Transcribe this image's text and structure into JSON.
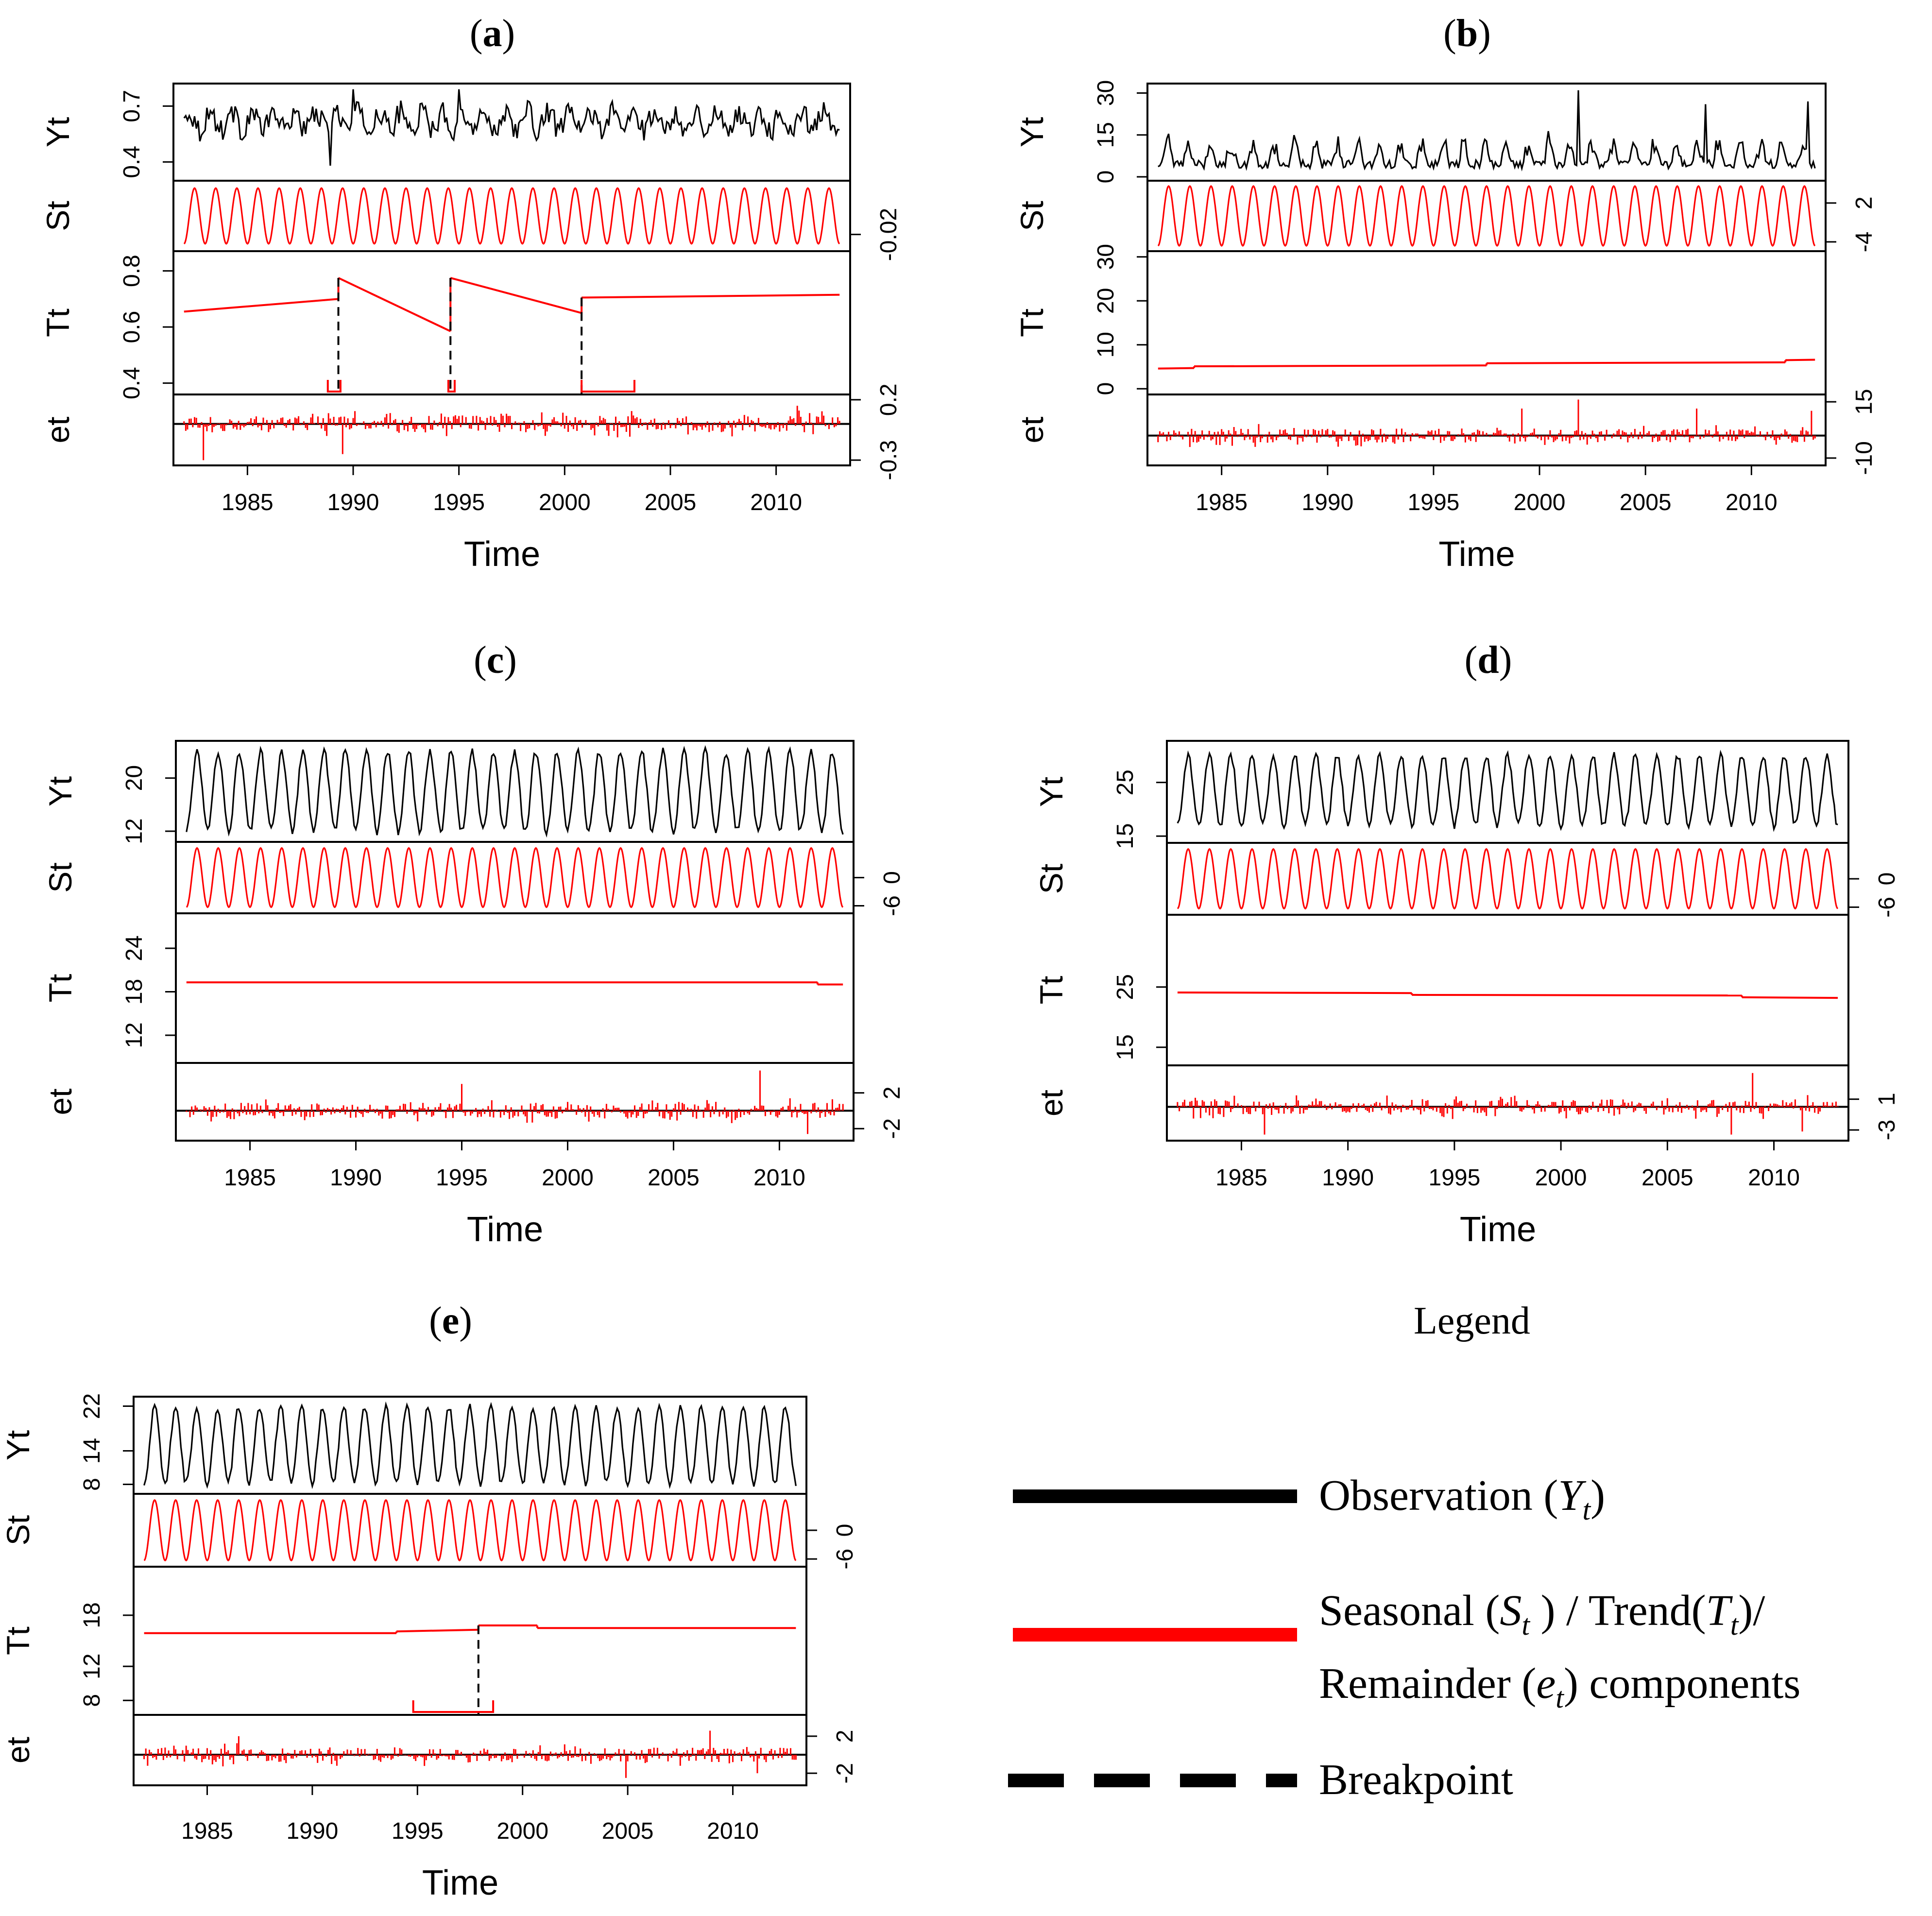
{
  "figure": {
    "legend_title": "Legend",
    "legend": [
      {
        "kind": "solid-black",
        "text": "Observation (Yₜ)",
        "line1": "Observation (",
        "sym": "Y",
        "sub": "t",
        "tail": ")"
      },
      {
        "kind": "solid-red",
        "line1": "Seasonal ( Sₜ ) / Trend(Tₜ)/",
        "line2": "Remainder (eₜ) components"
      },
      {
        "kind": "dashed-black",
        "text": "Breakpoint"
      }
    ],
    "colors": {
      "observation": "#000000",
      "component": "#ff0000",
      "breakpoint": "#000000",
      "frame": "#000000"
    }
  },
  "chart_data": [
    {
      "type": "line",
      "id": "a",
      "title": "(a)",
      "title_bold": "a",
      "xlabel": "Time",
      "xlim": [
        1981.5,
        2013.5
      ],
      "xticks": [
        1985,
        1990,
        1995,
        2000,
        2005,
        2010
      ],
      "xtick_labels": [
        "1985",
        "1990",
        "1995",
        "2000",
        "2005",
        "2010"
      ],
      "panels": [
        {
          "name": "Yt",
          "label": "Yt",
          "ylim": [
            0.32,
            0.8
          ],
          "ticks": [
            0.4,
            0.7
          ],
          "tick_labels": [
            "0.4",
            "0.7"
          ],
          "tick_side": "left",
          "series": {
            "kind": "noisy",
            "mean": 0.62,
            "amp": 0.05,
            "noise": 0.06,
            "spikes": [
              [
                1988.9,
                0.38
              ],
              [
                1990.0,
                0.79
              ],
              [
                1995.0,
                0.79
              ]
            ]
          }
        },
        {
          "name": "St",
          "label": "St",
          "ylim": [
            -0.035,
            0.035
          ],
          "ticks": [
            -0.02
          ],
          "tick_labels": [
            "-0.02"
          ],
          "tick_side": "right",
          "series": {
            "kind": "seasonal",
            "amp": 0.03
          }
        },
        {
          "name": "Tt",
          "label": "Tt",
          "ylim": [
            0.38,
            0.85
          ],
          "ticks": [
            0.4,
            0.6,
            0.8
          ],
          "tick_labels": [
            "0.4",
            "0.6",
            "0.8"
          ],
          "tick_side": "left",
          "series": {
            "kind": "segments",
            "segments": [
              [
                1982.0,
                0.655,
                1989.3,
                0.7
              ],
              [
                1989.3,
                0.775,
                1994.6,
                0.585
              ],
              [
                1994.6,
                0.775,
                2000.8,
                0.65
              ],
              [
                2000.8,
                0.705,
                2013.0,
                0.715
              ]
            ]
          },
          "breakpoints": [
            1989.3,
            1994.6,
            2000.8
          ],
          "ci": [
            [
              1988.8,
              1989.4
            ],
            [
              1994.5,
              1994.8
            ],
            [
              2000.8,
              2003.3
            ]
          ]
        },
        {
          "name": "et",
          "label": "et",
          "ylim": [
            -0.32,
            0.22
          ],
          "ticks": [
            0.2,
            -0.3
          ],
          "tick_labels": [
            "0.2",
            "-0.3"
          ],
          "tick_side": "right",
          "series": {
            "kind": "remainder",
            "noise": 0.07,
            "spikes": [
              [
                1982.9,
                -0.3
              ],
              [
                1989.5,
                -0.25
              ],
              [
                2011.0,
                0.15
              ]
            ]
          }
        }
      ]
    },
    {
      "type": "line",
      "id": "b",
      "title": "(b)",
      "title_bold": "b",
      "xlabel": "Time",
      "xlim": [
        1981.5,
        2013.5
      ],
      "xticks": [
        1985,
        1990,
        1995,
        2000,
        2005,
        2010
      ],
      "xtick_labels": [
        "1985",
        "1990",
        "1995",
        "2000",
        "2005",
        "2010"
      ],
      "panels": [
        {
          "name": "Yt",
          "label": "Yt",
          "ylim": [
            0,
            32
          ],
          "ticks": [
            0,
            15,
            30
          ],
          "tick_labels": [
            "0",
            "15",
            "30"
          ],
          "tick_side": "left",
          "series": {
            "kind": "seasonal-spiky",
            "base": 3,
            "amp": 7,
            "noise": 3,
            "spikes": [
              [
                2001.8,
                31
              ],
              [
                2007.8,
                26
              ],
              [
                2012.7,
                27
              ]
            ]
          }
        },
        {
          "name": "St",
          "label": "St",
          "ylim": [
            -5,
            5
          ],
          "ticks": [
            -4,
            2
          ],
          "tick_labels": [
            "-4",
            "2"
          ],
          "tick_side": "right",
          "series": {
            "kind": "seasonal",
            "amp": 4.6
          }
        },
        {
          "name": "Tt",
          "label": "Tt",
          "ylim": [
            0,
            30
          ],
          "ticks": [
            0,
            10,
            20,
            30
          ],
          "tick_labels": [
            "0",
            "10",
            "20",
            "30"
          ],
          "tick_side": "left",
          "series": {
            "kind": "segments",
            "segments": [
              [
                1982.0,
                4.6,
                1983.7,
                4.7
              ],
              [
                1983.7,
                5.1,
                1997.5,
                5.3
              ],
              [
                1997.5,
                5.8,
                2011.6,
                6.0
              ],
              [
                2011.6,
                6.5,
                2013.0,
                6.6
              ]
            ]
          },
          "breakpoints": [],
          "ci": []
        },
        {
          "name": "et",
          "label": "et",
          "ylim": [
            -12,
            17
          ],
          "ticks": [
            15,
            -10
          ],
          "tick_labels": [
            "15",
            "-10"
          ],
          "tick_side": "right",
          "series": {
            "kind": "remainder",
            "noise": 3.2,
            "spikes": [
              [
                2001.8,
                16
              ],
              [
                1999.2,
                12
              ],
              [
                2007.4,
                12
              ],
              [
                2012.8,
                11
              ]
            ]
          }
        }
      ]
    },
    {
      "type": "line",
      "id": "c",
      "title": "(c)",
      "title_bold": "c",
      "xlabel": "Time",
      "xlim": [
        1981.5,
        2013.5
      ],
      "xticks": [
        1985,
        1990,
        1995,
        2000,
        2005,
        2010
      ],
      "xtick_labels": [
        "1985",
        "1990",
        "1995",
        "2000",
        "2005",
        "2010"
      ],
      "panels": [
        {
          "name": "Yt",
          "label": "Yt",
          "ylim": [
            11,
            25
          ],
          "ticks": [
            12,
            20
          ],
          "tick_labels": [
            "12",
            "20"
          ],
          "tick_side": "left",
          "series": {
            "kind": "seasonal-clean",
            "mean": 18,
            "amp": 6,
            "noise": 0.6
          }
        },
        {
          "name": "St",
          "label": "St",
          "ylim": [
            -7,
            7
          ],
          "ticks": [
            -6,
            0
          ],
          "tick_labels": [
            "-6",
            "0"
          ],
          "tick_side": "right",
          "series": {
            "kind": "seasonal",
            "amp": 6.3
          }
        },
        {
          "name": "Tt",
          "label": "Tt",
          "ylim": [
            9,
            28
          ],
          "ticks": [
            12,
            18,
            24
          ],
          "tick_labels": [
            "12",
            "18",
            "24"
          ],
          "tick_side": "left",
          "series": {
            "kind": "segments",
            "segments": [
              [
                1982.0,
                19.3,
                2011.8,
                19.3
              ],
              [
                2011.8,
                19.0,
                2013.0,
                19.0
              ]
            ]
          },
          "breakpoints": [],
          "ci": []
        },
        {
          "name": "et",
          "label": "et",
          "ylim": [
            -3,
            5
          ],
          "ticks": [
            2,
            -2
          ],
          "tick_labels": [
            "2",
            "-2"
          ],
          "tick_side": "right",
          "series": {
            "kind": "remainder",
            "noise": 0.9,
            "spikes": [
              [
                2009.1,
                4.5
              ],
              [
                1995.0,
                3.0
              ],
              [
                2011.3,
                -2.6
              ]
            ]
          }
        }
      ]
    },
    {
      "type": "line",
      "id": "d",
      "title": "(d)",
      "title_bold": "d",
      "xlabel": "Time",
      "xlim": [
        1981.5,
        2013.5
      ],
      "xticks": [
        1985,
        1990,
        1995,
        2000,
        2005,
        2010
      ],
      "xtick_labels": [
        "1985",
        "1990",
        "1995",
        "2000",
        "2005",
        "2010"
      ],
      "panels": [
        {
          "name": "Yt",
          "label": "Yt",
          "ylim": [
            14.5,
            32
          ],
          "ticks": [
            15,
            25
          ],
          "tick_labels": [
            "15",
            "25"
          ],
          "tick_side": "left",
          "series": {
            "kind": "seasonal-clean",
            "mean": 23.5,
            "amp": 6.5,
            "noise": 0.7
          }
        },
        {
          "name": "St",
          "label": "St",
          "ylim": [
            -7,
            7
          ],
          "ticks": [
            -6,
            0
          ],
          "tick_labels": [
            "-6",
            "0"
          ],
          "tick_side": "right",
          "series": {
            "kind": "seasonal",
            "amp": 6.3
          }
        },
        {
          "name": "Tt",
          "label": "Tt",
          "ylim": [
            13,
            36
          ],
          "ticks": [
            15,
            25
          ],
          "tick_labels": [
            "15",
            "25"
          ],
          "tick_side": "left",
          "series": {
            "kind": "segments",
            "segments": [
              [
                1982.0,
                24.1,
                1993.0,
                24.0
              ],
              [
                1993.0,
                23.7,
                2008.5,
                23.6
              ],
              [
                2008.5,
                23.3,
                2013.0,
                23.2
              ]
            ]
          },
          "breakpoints": [],
          "ci": []
        },
        {
          "name": "et",
          "label": "et",
          "ylim": [
            -4,
            5
          ],
          "ticks": [
            1,
            -3
          ],
          "tick_labels": [
            "1",
            "-3"
          ],
          "tick_side": "right",
          "series": {
            "kind": "remainder",
            "noise": 1.0,
            "spikes": [
              [
                2009.0,
                4.4
              ],
              [
                1986.1,
                -3.6
              ],
              [
                2008.0,
                -3.6
              ],
              [
                2011.3,
                -3.2
              ]
            ]
          }
        }
      ]
    },
    {
      "type": "line",
      "id": "e",
      "title": "(e)",
      "title_bold": "e",
      "xlabel": "Time",
      "xlim": [
        1981.5,
        2013.5
      ],
      "xticks": [
        1985,
        1990,
        1995,
        2000,
        2005,
        2010
      ],
      "xtick_labels": [
        "1985",
        "1990",
        "1995",
        "2000",
        "2005",
        "2010"
      ],
      "panels": [
        {
          "name": "Yt",
          "label": "Yt",
          "ylim": [
            7,
            23
          ],
          "ticks": [
            8,
            14,
            22
          ],
          "tick_labels": [
            "8",
            "14",
            "22"
          ],
          "tick_side": "left",
          "series": {
            "kind": "seasonal-clean",
            "mean": 15,
            "amp": 6.8,
            "noise": 0.6
          }
        },
        {
          "name": "St",
          "label": "St",
          "ylim": [
            -7,
            7
          ],
          "ticks": [
            -6,
            0
          ],
          "tick_labels": [
            "-6",
            "0"
          ],
          "tick_side": "right",
          "series": {
            "kind": "seasonal",
            "amp": 6.3
          }
        },
        {
          "name": "Tt",
          "label": "Tt",
          "ylim": [
            7,
            23
          ],
          "ticks": [
            8,
            12,
            18
          ],
          "tick_labels": [
            "8",
            "12",
            "18"
          ],
          "tick_side": "left",
          "series": {
            "kind": "segments",
            "segments": [
              [
                1982.0,
                15.9,
                1994.0,
                15.9
              ],
              [
                1994.0,
                16.1,
                1997.9,
                16.3
              ],
              [
                1997.9,
                16.8,
                2000.7,
                16.8
              ],
              [
                2000.7,
                16.5,
                2013.0,
                16.5
              ]
            ]
          },
          "breakpoints": [
            1997.9
          ],
          "ci": [
            [
              1994.8,
              1998.6
            ]
          ]
        },
        {
          "name": "et",
          "label": "et",
          "ylim": [
            -3,
            4
          ],
          "ticks": [
            2,
            -2
          ],
          "tick_labels": [
            "2",
            "-2"
          ],
          "tick_side": "right",
          "series": {
            "kind": "remainder",
            "noise": 0.8,
            "spikes": [
              [
                2008.9,
                2.6
              ],
              [
                2004.9,
                -2.5
              ],
              [
                2011.2,
                -2.0
              ],
              [
                1986.5,
                2.0
              ]
            ]
          }
        }
      ]
    }
  ]
}
